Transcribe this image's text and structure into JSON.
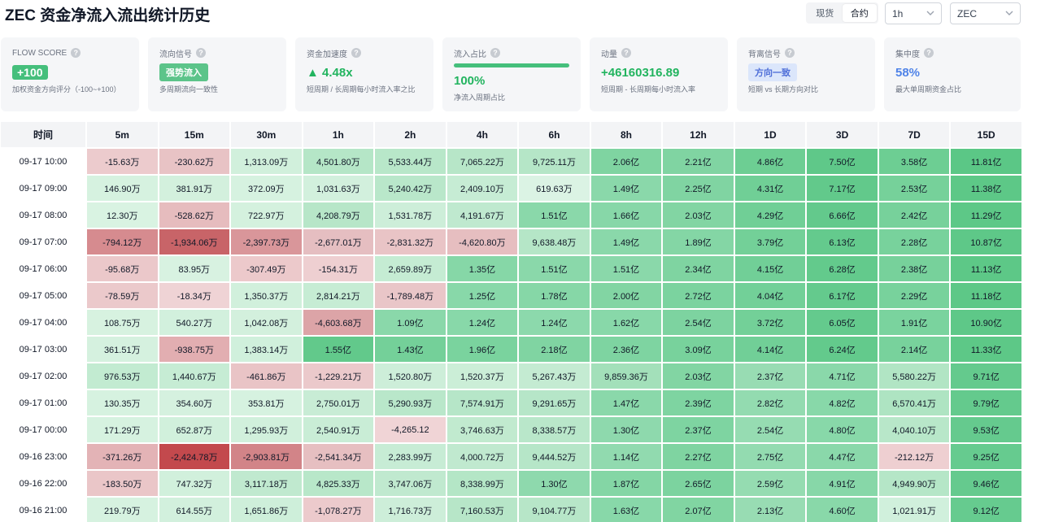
{
  "title": "ZEC 资金净流入流出统计历史",
  "market_tabs": [
    "现货",
    "合约"
  ],
  "market_active": 1,
  "interval": "1h",
  "coin": "ZEC",
  "cards": {
    "flow_score": {
      "label": "FLOW SCORE",
      "value": "+100",
      "sub": "加权资金方向评分（-100~+100）"
    },
    "flow_signal": {
      "label": "流向信号",
      "value": "强势流入",
      "sub": "多周期流向一致性"
    },
    "acceleration": {
      "label": "资金加速度",
      "value": "▲ 4.48x",
      "sub": "短周期 / 长周期每小时流入率之比"
    },
    "inflow_ratio": {
      "label": "流入占比",
      "value": "100%",
      "sub": "净流入周期占比",
      "fill": 1.0
    },
    "momentum": {
      "label": "动量",
      "value": "+46160316.89",
      "sub": "短周期 - 长周期每小时流入率"
    },
    "divergence": {
      "label": "背离信号",
      "value": "方向一致",
      "sub": "短期 vs 长期方向对比"
    },
    "concentration": {
      "label": "集中度",
      "value": "58%",
      "sub": "最大单周期资金占比"
    }
  },
  "table": {
    "headers": [
      "时间",
      "5m",
      "15m",
      "30m",
      "1h",
      "2h",
      "4h",
      "6h",
      "8h",
      "12h",
      "1D",
      "3D",
      "7D",
      "15D"
    ],
    "rows": [
      {
        "time": "09-17 10:00",
        "cells": [
          [
            "-15.63万",
            "#eccbcd"
          ],
          [
            "-230.62万",
            "#e8c3c5"
          ],
          [
            "1,313.09万",
            "#d1f0dc"
          ],
          [
            "4,501.80万",
            "#b5e6c7"
          ],
          [
            "5,533.44万",
            "#b8e7c9"
          ],
          [
            "7,065.22万",
            "#b7e6c8"
          ],
          [
            "9,725.11万",
            "#b5e6c7"
          ],
          [
            "2.06亿",
            "#7fd4a1"
          ],
          [
            "2.21亿",
            "#80d4a2"
          ],
          [
            "4.86亿",
            "#6dce93"
          ],
          [
            "7.50亿",
            "#5fc889"
          ],
          [
            "3.58亿",
            "#6dce93"
          ],
          [
            "11.81亿",
            "#5bc786"
          ]
        ]
      },
      {
        "time": "09-17 09:00",
        "cells": [
          [
            "146.90万",
            "#d6f2e0"
          ],
          [
            "381.91万",
            "#d3f0dd"
          ],
          [
            "372.09万",
            "#d6f2e0"
          ],
          [
            "1,031.63万",
            "#d2f0dd"
          ],
          [
            "5,240.42万",
            "#b9e7ca"
          ],
          [
            "2,409.10万",
            "#c6ecd4"
          ],
          [
            "619.63万",
            "#dbf3e4"
          ],
          [
            "1.49亿",
            "#8ad8aa"
          ],
          [
            "2.25亿",
            "#80d4a2"
          ],
          [
            "4.31亿",
            "#70cf96"
          ],
          [
            "7.17亿",
            "#62c98b"
          ],
          [
            "2.53亿",
            "#76d19a"
          ],
          [
            "11.38亿",
            "#5dc887"
          ]
        ]
      },
      {
        "time": "09-17 08:00",
        "cells": [
          [
            "12.30万",
            "#d9f3e2"
          ],
          [
            "-528.62万",
            "#e6bcbe"
          ],
          [
            "722.97万",
            "#d4f1de"
          ],
          [
            "4,208.79万",
            "#b7e6c8"
          ],
          [
            "1,531.78万",
            "#cdeed9"
          ],
          [
            "4,191.67万",
            "#bfe9cf"
          ],
          [
            "1.51亿",
            "#8ad8aa"
          ],
          [
            "1.66亿",
            "#87d7a8"
          ],
          [
            "2.03亿",
            "#82d5a3"
          ],
          [
            "4.29亿",
            "#70cf96"
          ],
          [
            "6.66亿",
            "#63c98c"
          ],
          [
            "2.42亿",
            "#77d19b"
          ],
          [
            "11.29亿",
            "#5dc887"
          ]
        ]
      },
      {
        "time": "09-17 07:00",
        "cells": [
          [
            "-794.12万",
            "#d68b8f"
          ],
          [
            "-1,934.06万",
            "#c86468"
          ],
          [
            "-2,397.73万",
            "#d9969a"
          ],
          [
            "-2,677.01万",
            "#e5bec1"
          ],
          [
            "-2,831.32万",
            "#e9c4c6"
          ],
          [
            "-4,620.80万",
            "#e6bec0"
          ],
          [
            "9,638.48万",
            "#b5e6c7"
          ],
          [
            "1.49亿",
            "#8ad8aa"
          ],
          [
            "1.89亿",
            "#84d6a5"
          ],
          [
            "3.79亿",
            "#73d098"
          ],
          [
            "6.13亿",
            "#64ca8d"
          ],
          [
            "2.28亿",
            "#78d29c"
          ],
          [
            "10.87亿",
            "#5ec888"
          ]
        ]
      },
      {
        "time": "09-17 06:00",
        "cells": [
          [
            "-95.68万",
            "#ebc8ca"
          ],
          [
            "83.95万",
            "#d8f2e1"
          ],
          [
            "-307.49万",
            "#ecc9cb"
          ],
          [
            "-154.31万",
            "#eecfd1"
          ],
          [
            "2,659.89万",
            "#c5ecd3"
          ],
          [
            "1.35亿",
            "#86d7a7"
          ],
          [
            "1.51亿",
            "#8ad8aa"
          ],
          [
            "1.51亿",
            "#8ad8aa"
          ],
          [
            "2.34亿",
            "#7fd4a1"
          ],
          [
            "4.15亿",
            "#71cf97"
          ],
          [
            "6.28亿",
            "#63ca8c"
          ],
          [
            "2.38亿",
            "#77d19b"
          ],
          [
            "11.13亿",
            "#5dc887"
          ]
        ]
      },
      {
        "time": "09-17 05:00",
        "cells": [
          [
            "-78.59万",
            "#ebc9cb"
          ],
          [
            "-18.34万",
            "#efd3d5"
          ],
          [
            "1,350.37万",
            "#d1f0dc"
          ],
          [
            "2,814.21万",
            "#c6ecd4"
          ],
          [
            "-1,789.48万",
            "#e9c6c8"
          ],
          [
            "1.25亿",
            "#88d8a9"
          ],
          [
            "1.78亿",
            "#86d7a7"
          ],
          [
            "2.00亿",
            "#82d5a3"
          ],
          [
            "2.72亿",
            "#7bd39f"
          ],
          [
            "4.04亿",
            "#72d098"
          ],
          [
            "6.17亿",
            "#64ca8d"
          ],
          [
            "2.29亿",
            "#78d29c"
          ],
          [
            "11.18亿",
            "#5dc887"
          ]
        ]
      },
      {
        "time": "09-17 04:00",
        "cells": [
          [
            "108.75万",
            "#d7f2e0"
          ],
          [
            "540.27万",
            "#d2f0dd"
          ],
          [
            "1,042.08万",
            "#d3f0dd"
          ],
          [
            "-4,603.68万",
            "#dca4a7"
          ],
          [
            "1.09亿",
            "#8ad8aa"
          ],
          [
            "1.24亿",
            "#88d8a9"
          ],
          [
            "1.24亿",
            "#8cd9ac"
          ],
          [
            "1.62亿",
            "#88d8a9"
          ],
          [
            "2.54亿",
            "#7dd3a0"
          ],
          [
            "3.72亿",
            "#73d098"
          ],
          [
            "6.05亿",
            "#64ca8d"
          ],
          [
            "1.91亿",
            "#7ad39e"
          ],
          [
            "10.90亿",
            "#5ec888"
          ]
        ]
      },
      {
        "time": "09-17 03:00",
        "cells": [
          [
            "361.51万",
            "#d5f1df"
          ],
          [
            "-938.75万",
            "#e2aeb1"
          ],
          [
            "1,383.14万",
            "#d0f0dc"
          ],
          [
            "1.55亿",
            "#62c98b"
          ],
          [
            "1.43亿",
            "#74d099"
          ],
          [
            "1.96亿",
            "#7ad39e"
          ],
          [
            "2.18亿",
            "#80d4a2"
          ],
          [
            "2.36亿",
            "#7ed4a1"
          ],
          [
            "3.09亿",
            "#78d29c"
          ],
          [
            "4.14亿",
            "#71cf97"
          ],
          [
            "6.24亿",
            "#63ca8c"
          ],
          [
            "2.14亿",
            "#78d29c"
          ],
          [
            "11.33亿",
            "#5dc887"
          ]
        ]
      },
      {
        "time": "09-17 02:00",
        "cells": [
          [
            "976.53万",
            "#c2ebd1"
          ],
          [
            "1,440.67万",
            "#c6ecd4"
          ],
          [
            "-461.86万",
            "#e9c4c6"
          ],
          [
            "-1,229.21万",
            "#ebc9cb"
          ],
          [
            "1,520.80万",
            "#cdeed9"
          ],
          [
            "1,520.37万",
            "#cbeed7"
          ],
          [
            "5,267.43万",
            "#c4ebd2"
          ],
          [
            "9,859.36万",
            "#a3e0ba"
          ],
          [
            "2.03亿",
            "#82d5a3"
          ],
          [
            "2.37亿",
            "#98dcb3"
          ],
          [
            "4.71亿",
            "#8ad8aa"
          ],
          [
            "5,580.22万",
            "#b1e5c4"
          ],
          [
            "9.71亿",
            "#64ca8d"
          ]
        ]
      },
      {
        "time": "09-17 01:00",
        "cells": [
          [
            "130.35万",
            "#d6f2e0"
          ],
          [
            "354.60万",
            "#d5f1df"
          ],
          [
            "353.81万",
            "#d6f2e0"
          ],
          [
            "2,750.01万",
            "#c8ecd5"
          ],
          [
            "5,290.93万",
            "#b9e7ca"
          ],
          [
            "7,574.91万",
            "#b6e6c8"
          ],
          [
            "9,291.65万",
            "#b6e6c8"
          ],
          [
            "1.47亿",
            "#8ad8aa"
          ],
          [
            "2.39亿",
            "#7ed4a1"
          ],
          [
            "2.82亿",
            "#93dbb0"
          ],
          [
            "4.82亿",
            "#88d8a9"
          ],
          [
            "6,570.41万",
            "#aee4c2"
          ],
          [
            "9.79亿",
            "#64ca8d"
          ]
        ]
      },
      {
        "time": "09-17 00:00",
        "cells": [
          [
            "171.29万",
            "#d6f2e0"
          ],
          [
            "652.87万",
            "#d1f0dc"
          ],
          [
            "1,295.93万",
            "#d1f0dc"
          ],
          [
            "2,540.91万",
            "#c9edd6"
          ],
          [
            "-4,265.12",
            "#f0d4d6"
          ],
          [
            "3,746.63万",
            "#c1eacf"
          ],
          [
            "8,338.57万",
            "#b9e7ca"
          ],
          [
            "1.30亿",
            "#8ed9ad"
          ],
          [
            "2.37亿",
            "#7ed4a1"
          ],
          [
            "2.54亿",
            "#96dcb2"
          ],
          [
            "4.80亿",
            "#88d8a9"
          ],
          [
            "4,040.10万",
            "#b8e7c9"
          ],
          [
            "9.53亿",
            "#65ca8e"
          ]
        ]
      },
      {
        "time": "09-16 23:00",
        "cells": [
          [
            "-371.26万",
            "#e3b3b6"
          ],
          [
            "-2,424.78万",
            "#c3494d"
          ],
          [
            "-2,903.81万",
            "#d28488"
          ],
          [
            "-2,541.34万",
            "#e6bfc1"
          ],
          [
            "2,283.99万",
            "#c7ecd5"
          ],
          [
            "4,000.72万",
            "#c0e9cf"
          ],
          [
            "9,444.52万",
            "#b6e6c8"
          ],
          [
            "1.14亿",
            "#91daaf"
          ],
          [
            "2.27亿",
            "#7fd4a1"
          ],
          [
            "2.75亿",
            "#93dbb0"
          ],
          [
            "4.47亿",
            "#8ad8aa"
          ],
          [
            "-212.12万",
            "#eecfd1"
          ],
          [
            "9.25亿",
            "#66cb8f"
          ]
        ]
      },
      {
        "time": "09-16 22:00",
        "cells": [
          [
            "-183.50万",
            "#eac6c8"
          ],
          [
            "747.32万",
            "#d1f0dc"
          ],
          [
            "3,117.18万",
            "#c0e9cf"
          ],
          [
            "4,825.33万",
            "#b8e7c9"
          ],
          [
            "3,747.06万",
            "#c0e9cf"
          ],
          [
            "8,338.99万",
            "#b4e6c6"
          ],
          [
            "1.30亿",
            "#8ed9ad"
          ],
          [
            "1.87亿",
            "#84d6a5"
          ],
          [
            "2.65亿",
            "#7cd39f"
          ],
          [
            "2.59亿",
            "#95dcb1"
          ],
          [
            "4.91亿",
            "#87d7a8"
          ],
          [
            "4,949.90万",
            "#b5e6c7"
          ],
          [
            "9.46亿",
            "#65ca8e"
          ]
        ]
      },
      {
        "time": "09-16 21:00",
        "cells": [
          [
            "219.79万",
            "#d6f2e0"
          ],
          [
            "614.55万",
            "#d2f0dd"
          ],
          [
            "1,651.86万",
            "#ceefda"
          ],
          [
            "-1,078.27万",
            "#eccacc"
          ],
          [
            "1,716.73万",
            "#cdeed9"
          ],
          [
            "7,160.53万",
            "#b7e6c8"
          ],
          [
            "9,104.77万",
            "#b7e6c8"
          ],
          [
            "1.63亿",
            "#88d8a9"
          ],
          [
            "2.07亿",
            "#81d5a2"
          ],
          [
            "2.13亿",
            "#98dcb3"
          ],
          [
            "4.60亿",
            "#89d8a9"
          ],
          [
            "1,021.91万",
            "#d0f0dc"
          ],
          [
            "9.12亿",
            "#66cb8f"
          ]
        ]
      }
    ]
  }
}
